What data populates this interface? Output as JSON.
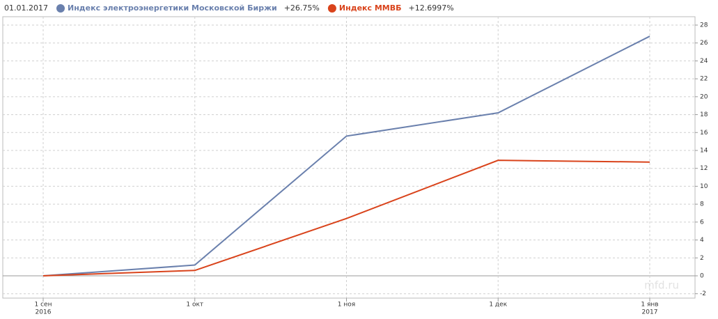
{
  "chart_data": {
    "type": "line",
    "date_label": "01.01.2017",
    "categories": [
      "1 сен",
      "1 окт",
      "1 ноя",
      "1 дек",
      "1 янв"
    ],
    "category_years": [
      "2016",
      null,
      null,
      null,
      "2017"
    ],
    "series": [
      {
        "name": "Индекс электроэнергетики Московской Биржи",
        "legend_value": "+26.75%",
        "color": "#6a80ad",
        "values": [
          0,
          1.2,
          15.6,
          18.2,
          26.75
        ]
      },
      {
        "name": "Индекс ММВБ",
        "legend_value": "+12.6997%",
        "color": "#d9431b",
        "values": [
          0,
          0.6,
          6.4,
          12.9,
          12.7
        ]
      }
    ],
    "ylim": [
      -2,
      28
    ],
    "yticks": [
      -2,
      0,
      2,
      4,
      6,
      8,
      10,
      12,
      14,
      16,
      18,
      20,
      22,
      24,
      26,
      28
    ],
    "grid": true,
    "watermark": "mfd.ru"
  }
}
